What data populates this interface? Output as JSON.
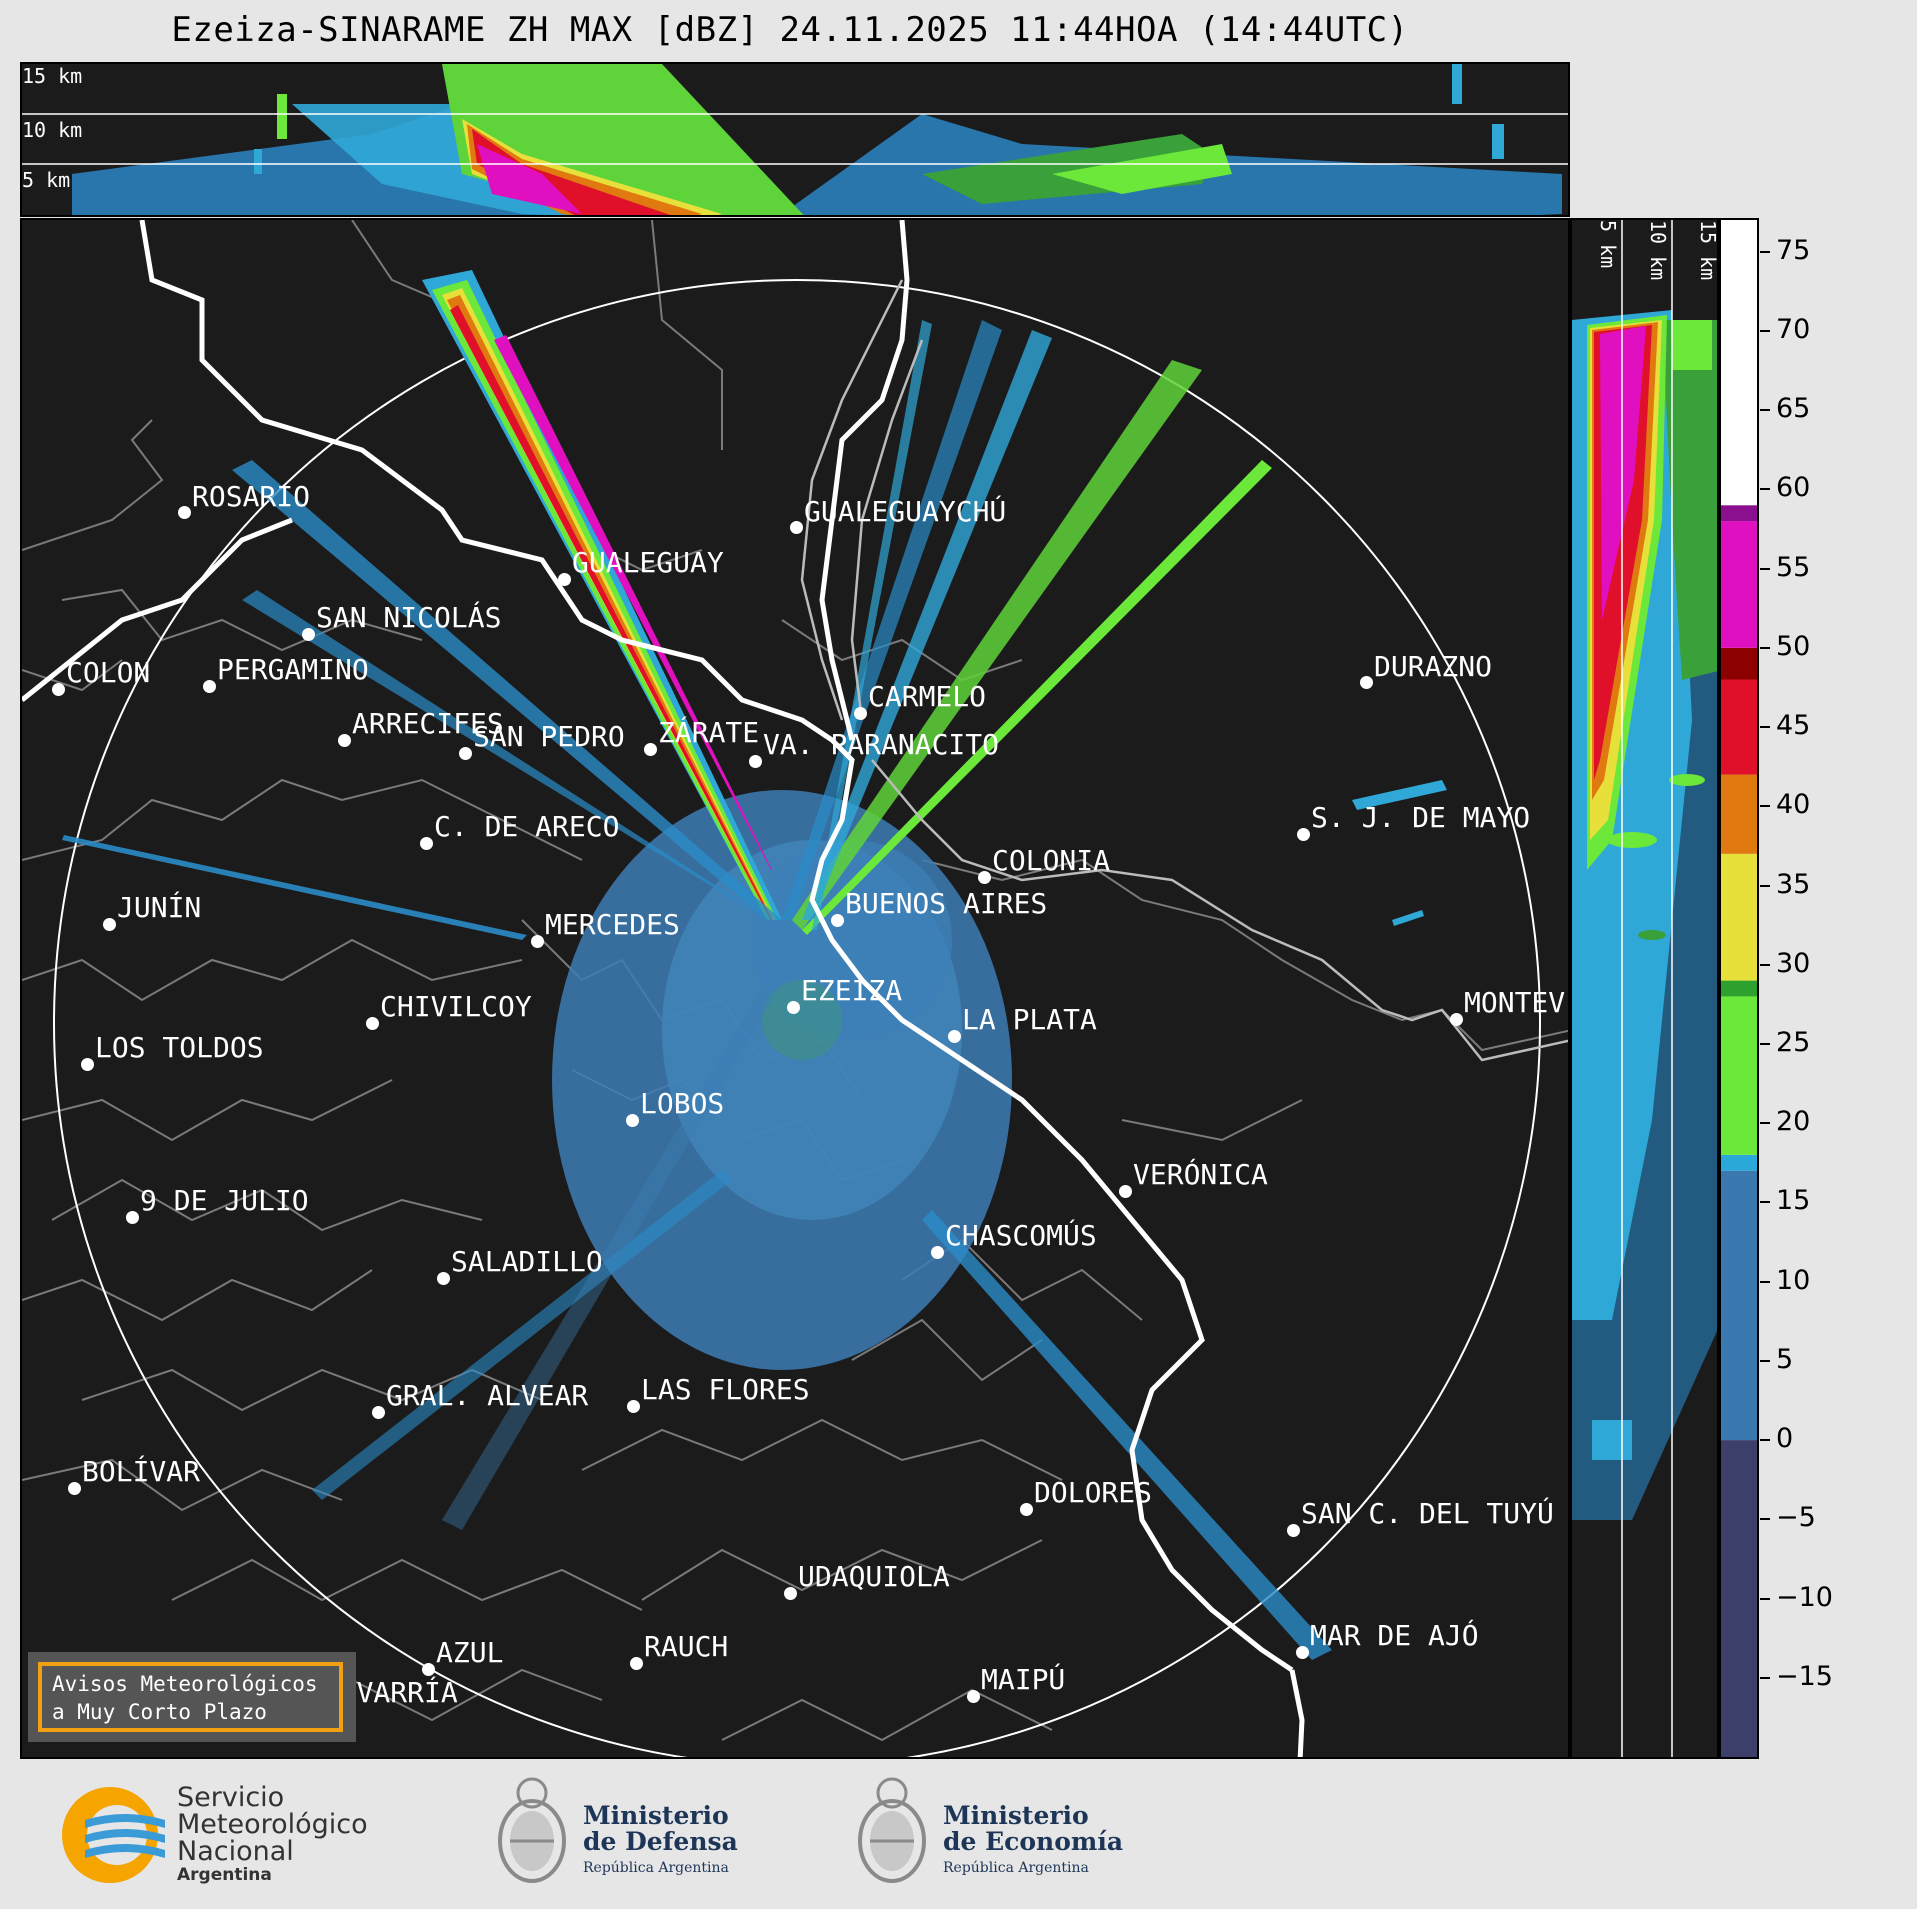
{
  "title": "Ezeiza-SINARAME ZH MAX [dBZ] 24.11.2025 11:44HOA (14:44UTC)",
  "top_panel": {
    "km_labels": [
      "15 km",
      "10 km",
      "5 km"
    ]
  },
  "side_panel": {
    "km_labels": [
      "5 km",
      "10 km",
      "15 km"
    ]
  },
  "colorbar": {
    "ticks": [
      "75",
      "70",
      "65",
      "60",
      "55",
      "50",
      "45",
      "40",
      "35",
      "30",
      "25",
      "20",
      "15",
      "10",
      "5",
      "0",
      "−5",
      "−10",
      "−15"
    ],
    "range": [
      -20,
      77
    ],
    "colors": {
      "low": "#3b3f6a",
      "mid_blue": "#3a78b0",
      "light_blue": "#2aa8d8",
      "green": "#2ea02e",
      "bright_green": "#6be83a",
      "yellow": "#e8e03a",
      "orange": "#e07a10",
      "red": "#e0102a",
      "dark_red": "#8c0000",
      "magenta": "#e010c0",
      "purple": "#8a1090",
      "white": "#ffffff",
      "mint": "#80e0c0"
    }
  },
  "cities": [
    {
      "name": "ROSARIO"
    },
    {
      "name": "GUALEGUAYCHÚ"
    },
    {
      "name": "GUALEGUAY"
    },
    {
      "name": "SAN NICOLÁS"
    },
    {
      "name": "DURAZNO"
    },
    {
      "name": "SAN PEDRO"
    },
    {
      "name": "VA. PARANACITO"
    },
    {
      "name": "COLON"
    },
    {
      "name": "PERGAMINO"
    },
    {
      "name": "ARRECIFES"
    },
    {
      "name": "ZÁRATE"
    },
    {
      "name": "CARMELO"
    },
    {
      "name": "C. DE ARECO"
    },
    {
      "name": "S. J. DE MAYO"
    },
    {
      "name": "COLONIA"
    },
    {
      "name": "JUNÍN"
    },
    {
      "name": "MERCEDES"
    },
    {
      "name": "BUENOS AIRES"
    },
    {
      "name": "EZEIZA"
    },
    {
      "name": "CHIVILCOY"
    },
    {
      "name": "LA PLATA"
    },
    {
      "name": "MONTEV"
    },
    {
      "name": "LOS TOLDOS"
    },
    {
      "name": "LOBOS"
    },
    {
      "name": "VERÓNICA"
    },
    {
      "name": "9 DE JULIO"
    },
    {
      "name": "CHASCOMÚS"
    },
    {
      "name": "SALADILLO"
    },
    {
      "name": "GRAL. ALVEAR"
    },
    {
      "name": "LAS FLORES"
    },
    {
      "name": "BOLÍVAR"
    },
    {
      "name": "DOLORES"
    },
    {
      "name": "SAN C. DEL TUYÚ"
    },
    {
      "name": "UDAQUIOLA"
    },
    {
      "name": "AZUL"
    },
    {
      "name": "RAUCH"
    },
    {
      "name": "MAR DE AJÓ"
    },
    {
      "name": "MAIPÚ"
    },
    {
      "name": "OLAVARRÍA"
    }
  ],
  "warning_box": {
    "line1": "Avisos Meteorológicos",
    "line2": "a Muy Corto Plazo"
  },
  "logos": {
    "smn": {
      "line1": "Servicio",
      "line2": "Meteorológico",
      "line3": "Nacional",
      "line4": "Argentina"
    },
    "defensa": {
      "line1": "Ministerio",
      "line2": "de Defensa",
      "line3": "República Argentina"
    },
    "economia": {
      "line1": "Ministerio",
      "line2": "de Economía",
      "line3": "República Argentina"
    }
  }
}
